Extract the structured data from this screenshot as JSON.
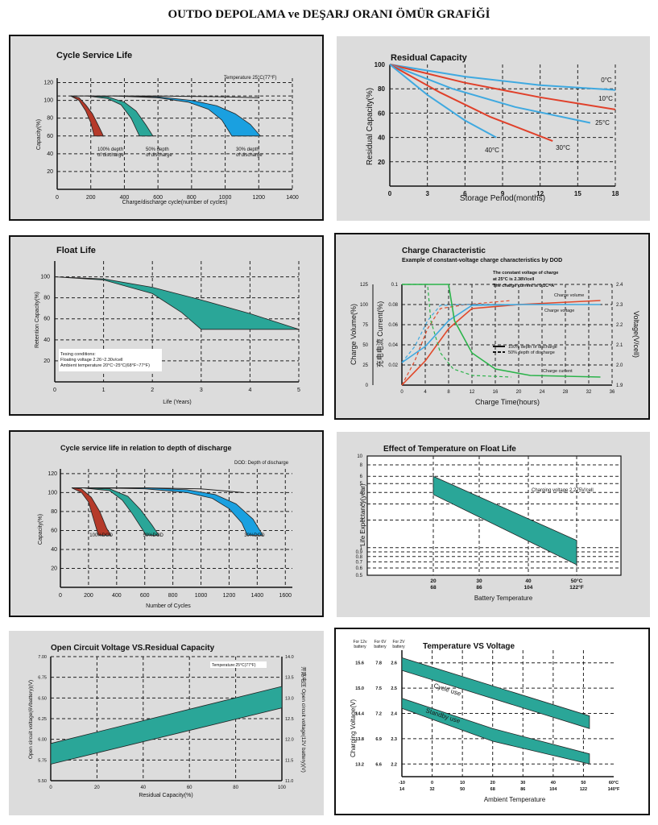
{
  "page": {
    "title": "OUTDO DEPOLAMA ve DEŞARJ ORANI ÖMÜR GRAFİĞİ"
  },
  "chart_data": [
    {
      "type": "area",
      "title": "Cycle Service Life",
      "xlabel": "Charge/discharge cycle(number of cycles)",
      "ylabel": "Capacity(%)",
      "xlim": [
        0,
        1400
      ],
      "ylim": [
        0,
        125
      ],
      "xticks": [
        "0",
        "200",
        "400",
        "600",
        "800",
        "1000",
        "1200",
        "1400"
      ],
      "yticks": [
        "20",
        "40",
        "60",
        "80",
        "100",
        "120"
      ],
      "annotation": "Temperature 25°C(77°F)",
      "series": [
        {
          "name": "100% depth of discharge",
          "color": "#b53a2a",
          "upper": [
            [
              80,
              105
            ],
            [
              130,
              103
            ],
            [
              170,
              95
            ],
            [
              210,
              85
            ],
            [
              250,
              70
            ],
            [
              275,
              60
            ]
          ],
          "lower": [
            [
              80,
              105
            ],
            [
              130,
              100
            ],
            [
              170,
              88
            ],
            [
              200,
              75
            ],
            [
              220,
              60
            ]
          ]
        },
        {
          "name": "50% depth of discharge",
          "color": "#2aa698",
          "upper": [
            [
              180,
              105
            ],
            [
              300,
              104
            ],
            [
              400,
              98
            ],
            [
              470,
              88
            ],
            [
              530,
              72
            ],
            [
              570,
              60
            ]
          ],
          "lower": [
            [
              180,
              105
            ],
            [
              300,
              102
            ],
            [
              380,
              95
            ],
            [
              440,
              80
            ],
            [
              490,
              60
            ]
          ]
        },
        {
          "name": "30% depth of discharge",
          "color": "#1aa0e0",
          "upper": [
            [
              330,
              105
            ],
            [
              600,
              104
            ],
            [
              800,
              100
            ],
            [
              950,
              94
            ],
            [
              1060,
              85
            ],
            [
              1150,
              73
            ],
            [
              1210,
              60
            ]
          ],
          "lower": [
            [
              330,
              105
            ],
            [
              600,
              103
            ],
            [
              780,
              98
            ],
            [
              900,
              90
            ],
            [
              980,
              78
            ],
            [
              1040,
              60
            ]
          ]
        }
      ],
      "labels": [
        "100% depth",
        "of discharge",
        "50% depth",
        "of discharge",
        "30% depth",
        "of discharge"
      ]
    },
    {
      "type": "line",
      "title": "Residual Capacity",
      "xlabel": "Storage Period(months)",
      "ylabel": "Residual Capacity(%)",
      "xlim": [
        0,
        18
      ],
      "ylim": [
        0,
        100
      ],
      "xticks": [
        "0",
        "3",
        "6",
        "9",
        "12",
        "15",
        "18"
      ],
      "yticks": [
        "20",
        "40",
        "60",
        "80",
        "100"
      ],
      "series": [
        {
          "name": "0°C",
          "color": "#3fa9e0",
          "points": [
            [
              0,
              100
            ],
            [
              6,
              90
            ],
            [
              12,
              83
            ],
            [
              18,
              79
            ]
          ]
        },
        {
          "name": "10°C",
          "color": "#e0402a",
          "points": [
            [
              0,
              100
            ],
            [
              6,
              85
            ],
            [
              12,
              73
            ],
            [
              18,
              63
            ]
          ]
        },
        {
          "name": "25°C",
          "color": "#3fa9e0",
          "points": [
            [
              0,
              100
            ],
            [
              5,
              80
            ],
            [
              10,
              65
            ],
            [
              16,
              52
            ]
          ]
        },
        {
          "name": "30°C",
          "color": "#e0402a",
          "points": [
            [
              0,
              100
            ],
            [
              4,
              77
            ],
            [
              8,
              57
            ],
            [
              13,
              37
            ]
          ]
        },
        {
          "name": "40°C",
          "color": "#3fa9e0",
          "points": [
            [
              0,
              100
            ],
            [
              3,
              75
            ],
            [
              6,
              54
            ],
            [
              8.5,
              40
            ]
          ]
        }
      ]
    },
    {
      "type": "area",
      "title": "Float Life",
      "xlabel": "Life (Years)",
      "ylabel": "Retention Capacity(%)",
      "xlim": [
        0,
        5
      ],
      "ylim": [
        0,
        115
      ],
      "xticks": [
        "0",
        "1",
        "2",
        "3",
        "4",
        "5"
      ],
      "yticks": [
        "20",
        "40",
        "60",
        "80",
        "100"
      ],
      "note_lines": [
        "Tesing conditions:",
        "Floating voltage 2.26~2.30v/cell",
        "Ambient temperature 20°C~25°C(68°F~77°F)"
      ],
      "band": {
        "upper": [
          [
            0,
            100
          ],
          [
            1,
            98
          ],
          [
            2,
            90
          ],
          [
            3,
            78
          ],
          [
            4,
            65
          ],
          [
            5,
            50
          ]
        ],
        "lower": [
          [
            0,
            100
          ],
          [
            1,
            97
          ],
          [
            2,
            84
          ],
          [
            2.6,
            66
          ],
          [
            3,
            50
          ],
          [
            5,
            50
          ]
        ]
      },
      "color": "#2aa698"
    },
    {
      "type": "line",
      "title": "Charge Characteristic",
      "subtitle": "Example of constant-voltage charge characteristics by DOD",
      "xlabel": "Charge Time(hours)",
      "ylabel_left": "Charge Volume(%)",
      "ylabel_mid": "充电电流 Current(%)",
      "ylabel_right": "Voltage(V/cell)",
      "xticks": [
        "0",
        "4",
        "8",
        "12",
        "16",
        "20",
        "24",
        "28",
        "32",
        "36"
      ],
      "yticks_volume": [
        "0",
        "25",
        "50",
        "75",
        "100",
        "125"
      ],
      "yticks_current": [
        "0.02",
        "0.04",
        "0.06",
        "0.08",
        "0.1"
      ],
      "yticks_voltage": [
        "1.9",
        "2.0",
        "2.1",
        "2.2",
        "2.3",
        "2.4"
      ],
      "notes": [
        "The constant voltage of charge",
        "at 25°C is 2.38V/cell",
        "The charge current is 0.1C~A"
      ],
      "legend": [
        "100% depth of discharge",
        "50% depth of discharge"
      ],
      "curve_labels": [
        "Charge volume",
        "Charge voltage",
        "Charge current"
      ],
      "series": [
        {
          "name": "Charge volume",
          "color": "#e0482a",
          "points": [
            [
              0,
              0
            ],
            [
              4,
              30
            ],
            [
              8,
              70
            ],
            [
              12,
              95
            ],
            [
              20,
              100
            ],
            [
              34,
              105
            ]
          ]
        },
        {
          "name": "Charge voltage",
          "color": "#3fa9e0",
          "points": [
            [
              0,
              28
            ],
            [
              4,
              48
            ],
            [
              8,
              80
            ],
            [
              12,
              99
            ],
            [
              20,
              100
            ],
            [
              34,
              100
            ]
          ]
        },
        {
          "name": "Charge current",
          "color": "#2bb34a",
          "points": [
            [
              0,
              125
            ],
            [
              8,
              125
            ],
            [
              9,
              80
            ],
            [
              12,
              40
            ],
            [
              16,
              20
            ],
            [
              22,
              12
            ],
            [
              34,
              10
            ]
          ]
        }
      ]
    },
    {
      "type": "area",
      "title": "Cycle service life in relation to depth of discharge",
      "xlabel": "Number of Cycles",
      "ylabel": "Capacity(%)",
      "xlim": [
        0,
        1650
      ],
      "ylim": [
        0,
        125
      ],
      "xticks": [
        "0",
        "200",
        "400",
        "600",
        "800",
        "1000",
        "1200",
        "1400",
        "1600"
      ],
      "yticks": [
        "20",
        "40",
        "60",
        "80",
        "100",
        "120"
      ],
      "annotation": "DOD: Depth of discharge",
      "series": [
        {
          "name": "100%DOD",
          "color": "#b53a2a",
          "upper": [
            [
              80,
              105
            ],
            [
              150,
              104
            ],
            [
              220,
              95
            ],
            [
              280,
              80
            ],
            [
              330,
              62
            ],
            [
              360,
              55
            ]
          ],
          "lower": [
            [
              80,
              105
            ],
            [
              150,
              100
            ],
            [
              200,
              90
            ],
            [
              240,
              70
            ],
            [
              270,
              55
            ]
          ]
        },
        {
          "name": "50%DOD",
          "color": "#2aa698",
          "upper": [
            [
              150,
              105
            ],
            [
              350,
              104
            ],
            [
              480,
              96
            ],
            [
              570,
              82
            ],
            [
              650,
              66
            ],
            [
              700,
              55
            ]
          ],
          "lower": [
            [
              150,
              105
            ],
            [
              350,
              102
            ],
            [
              440,
              92
            ],
            [
              510,
              78
            ],
            [
              580,
              62
            ],
            [
              610,
              55
            ]
          ]
        },
        {
          "name": "30%DOD",
          "color": "#1aa0e0",
          "upper": [
            [
              250,
              105
            ],
            [
              600,
              105
            ],
            [
              900,
              103
            ],
            [
              1100,
              98
            ],
            [
              1250,
              88
            ],
            [
              1370,
              72
            ],
            [
              1440,
              55
            ]
          ],
          "lower": [
            [
              250,
              105
            ],
            [
              600,
              104
            ],
            [
              900,
              100
            ],
            [
              1080,
              94
            ],
            [
              1200,
              83
            ],
            [
              1290,
              68
            ],
            [
              1330,
              55
            ]
          ]
        }
      ]
    },
    {
      "type": "area",
      "title": "Effect of Temperature on Float Life",
      "xlabel": "Battery Temperature",
      "ylabel": "Life Expectancy(year)",
      "xlim": [
        20,
        50
      ],
      "ylim": [
        0.5,
        10
      ],
      "yscale": "log",
      "xticks_c": [
        "20",
        "30",
        "40",
        "50°C"
      ],
      "xticks_f": [
        "68",
        "86",
        "104",
        "122°F"
      ],
      "yticks": [
        "0.5",
        "0.6",
        "0.7",
        "0.8",
        "0.9",
        "1",
        "2",
        "3",
        "4",
        "5",
        "6",
        "8",
        "10"
      ],
      "annotation": "Charging voltage 2.275V/cell",
      "band": {
        "upper": [
          [
            20,
            6
          ],
          [
            50,
            1.2
          ]
        ],
        "lower": [
          [
            20,
            3.8
          ],
          [
            50,
            0.65
          ]
        ]
      },
      "color": "#2aa698"
    },
    {
      "type": "area",
      "title": "Open Circuit Voltage VS.Residual Capacity",
      "xlabel": "Residual Capacity(%)",
      "ylabel_left": "Open circuit voltage(6Vbattery)(V)",
      "ylabel_right": "开路电压 Open circuit voltage(12V battery)(V)",
      "xlim": [
        0,
        100
      ],
      "ylim": [
        5.5,
        7.0
      ],
      "xticks": [
        "0",
        "20",
        "40",
        "60",
        "80",
        "100"
      ],
      "yticks_left": [
        "5.50",
        "5.75",
        "6.00",
        "6.25",
        "6.50",
        "6.75",
        "7.00"
      ],
      "yticks_right": [
        "11.0",
        "11.5",
        "12.0",
        "12.5",
        "13.0",
        "13.5",
        "14.0"
      ],
      "annotation": "Temperature:25°C(77°F)",
      "band": {
        "upper": [
          [
            0,
            5.95
          ],
          [
            100,
            6.64
          ]
        ],
        "lower": [
          [
            0,
            5.7
          ],
          [
            100,
            6.38
          ]
        ]
      },
      "color": "#2aa698"
    },
    {
      "type": "area",
      "title": "Temperature VS Voltage",
      "xlabel": "Ambient Temperature",
      "ylabel": "Charging Voltage(V)",
      "axis_headers": [
        "For 12v battery",
        "For 6V battery",
        "For 2V battery"
      ],
      "xticks_c": [
        "-10",
        "0",
        "10",
        "20",
        "30",
        "40",
        "50",
        "60°C"
      ],
      "xticks_f": [
        "14",
        "32",
        "50",
        "68",
        "86",
        "104",
        "122",
        "140°F"
      ],
      "yticks_12v": [
        "13.2",
        "13.8",
        "14.4",
        "15.0",
        "15.6"
      ],
      "yticks_6v": [
        "6.6",
        "6.9",
        "7.2",
        "7.5",
        "7.8"
      ],
      "yticks_2v": [
        "2.2",
        "2.3",
        "2.4",
        "2.5",
        "2.6"
      ],
      "band_labels": [
        "Cycle use",
        "Standby use"
      ],
      "bands": [
        {
          "name": "Cycle use",
          "upper": [
            [
              -10,
              2.62
            ],
            [
              52,
              2.39
            ]
          ],
          "lower": [
            [
              -10,
              2.57
            ],
            [
              52,
              2.34
            ]
          ]
        },
        {
          "name": "Standby use",
          "upper": [
            [
              -10,
              2.46
            ],
            [
              20,
              2.34
            ],
            [
              52,
              2.24
            ]
          ],
          "lower": [
            [
              -10,
              2.42
            ],
            [
              20,
              2.29
            ],
            [
              52,
              2.2
            ]
          ]
        }
      ],
      "color": "#2aa698"
    }
  ]
}
